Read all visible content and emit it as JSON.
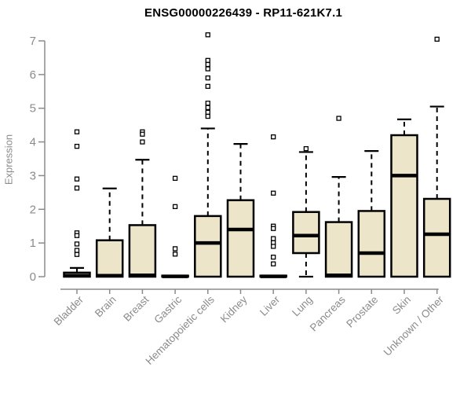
{
  "title": "ENSG00000226439 - RP11-621K7.1",
  "chart_data": {
    "type": "boxplot",
    "title": "ENSG00000226439 - RP11-621K7.1",
    "xlabel": "",
    "ylabel": "Expression",
    "ylim": [
      0,
      7
    ],
    "yticks": [
      0,
      1,
      2,
      3,
      4,
      5,
      6,
      7
    ],
    "grid": false,
    "legend": "none",
    "categories": [
      "Bladder",
      "Brain",
      "Breast",
      "Gastric",
      "Hematopoietic cells",
      "Kidney",
      "Liver",
      "Lung",
      "Pancreas",
      "Prostate",
      "Skin",
      "Unknown / Other"
    ],
    "series": [
      {
        "category": "Bladder",
        "q1": 0,
        "median": 0.03,
        "q3": 0.12,
        "whisker_low": 0,
        "whisker_high": 0.26,
        "outliers": [
          4.3,
          3.87,
          2.9,
          2.63,
          1.3,
          1.22,
          0.97,
          0.78,
          0.66
        ]
      },
      {
        "category": "Brain",
        "q1": 0,
        "median": 0.03,
        "q3": 1.08,
        "whisker_low": 0,
        "whisker_high": 2.62,
        "outliers": []
      },
      {
        "category": "Breast",
        "q1": 0,
        "median": 0.04,
        "q3": 1.53,
        "whisker_low": 0,
        "whisker_high": 3.47,
        "outliers": [
          4.3,
          4.23,
          4.0
        ]
      },
      {
        "category": "Gastric",
        "q1": 0,
        "median": 0.01,
        "q3": 0.03,
        "whisker_low": 0,
        "whisker_high": 0.04,
        "outliers": [
          2.92,
          2.08,
          0.83,
          0.67
        ]
      },
      {
        "category": "Hematopoietic cells",
        "q1": 0,
        "median": 1.0,
        "q3": 1.8,
        "whisker_low": 0,
        "whisker_high": 4.4,
        "outliers": [
          7.18,
          6.42,
          6.3,
          6.17,
          5.9,
          5.65,
          5.15,
          5.02,
          4.88,
          4.76
        ]
      },
      {
        "category": "Kidney",
        "q1": 0,
        "median": 1.4,
        "q3": 2.27,
        "whisker_low": 0,
        "whisker_high": 3.94,
        "outliers": []
      },
      {
        "category": "Liver",
        "q1": 0,
        "median": 0.01,
        "q3": 0.03,
        "whisker_low": 0,
        "whisker_high": 0.04,
        "outliers": [
          4.15,
          2.48,
          1.5,
          1.43,
          1.13,
          1.01,
          0.9,
          0.58,
          0.38
        ]
      },
      {
        "category": "Lung",
        "q1": 0.7,
        "median": 1.22,
        "q3": 1.92,
        "whisker_low": 0,
        "whisker_high": 3.7,
        "outliers": [
          3.8
        ]
      },
      {
        "category": "Pancreas",
        "q1": 0,
        "median": 0.04,
        "q3": 1.62,
        "whisker_low": 0,
        "whisker_high": 2.96,
        "outliers": [
          4.7
        ]
      },
      {
        "category": "Prostate",
        "q1": 0,
        "median": 0.7,
        "q3": 1.95,
        "whisker_low": 0,
        "whisker_high": 3.73,
        "outliers": []
      },
      {
        "category": "Skin",
        "q1": 0,
        "median": 3.0,
        "q3": 4.2,
        "whisker_low": 0,
        "whisker_high": 4.67,
        "outliers": []
      },
      {
        "category": "Unknown / Other",
        "q1": 0,
        "median": 1.26,
        "q3": 2.31,
        "whisker_low": 0,
        "whisker_high": 5.05,
        "outliers": [
          7.05
        ]
      }
    ],
    "colors": {
      "box_fill": "#ECE5C9",
      "box_border": "#000000",
      "median": "#000000",
      "whisker": "#000000",
      "outlier_stroke": "#000000",
      "outlier_fill": "#FFFFFF",
      "axis": "#8B8B8B",
      "tick_label": "#8B8B8B",
      "title": "#000000",
      "background": "#FFFFFF"
    }
  }
}
